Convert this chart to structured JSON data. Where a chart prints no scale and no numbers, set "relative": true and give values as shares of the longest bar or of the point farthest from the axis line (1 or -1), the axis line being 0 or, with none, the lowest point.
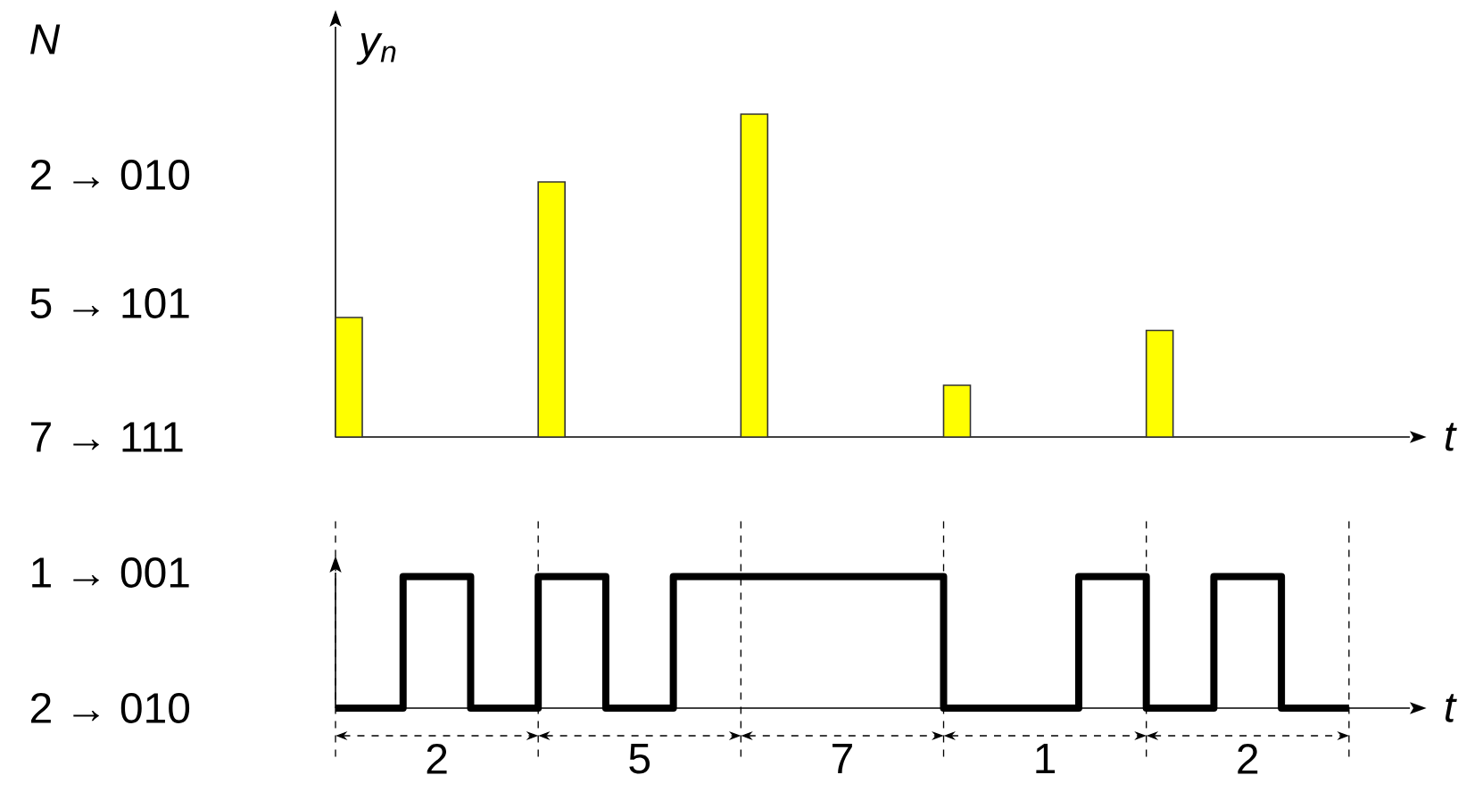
{
  "chart_data": [
    {
      "type": "bar",
      "categories": [
        null,
        null,
        null,
        null,
        null
      ],
      "values": [
        0.37,
        0.79,
        1,
        0.16,
        0.33
      ],
      "relative": true,
      "color": "#ffff00",
      "xlabel": "t",
      "ylabel": "y$_{n}$",
      "annotations": [
        "N",
        "2 → 010",
        "5 → 101",
        "7 → 111"
      ]
    },
    {
      "type": "step",
      "categories": [
        null,
        null,
        null,
        null,
        null,
        null,
        null,
        null,
        null,
        null,
        null,
        null,
        null,
        null,
        null,
        null
      ],
      "values": [
        0,
        1,
        0,
        1,
        0,
        1,
        1,
        1,
        1,
        0,
        0,
        1,
        0,
        1,
        0,
        0
      ],
      "relative": true,
      "color": "#000000",
      "xlabel": "t",
      "grid": "x",
      "annotations": [
        "1 → 001",
        "2 → 010",
        "2",
        "5",
        "7",
        "1",
        "2"
      ]
    }
  ]
}
